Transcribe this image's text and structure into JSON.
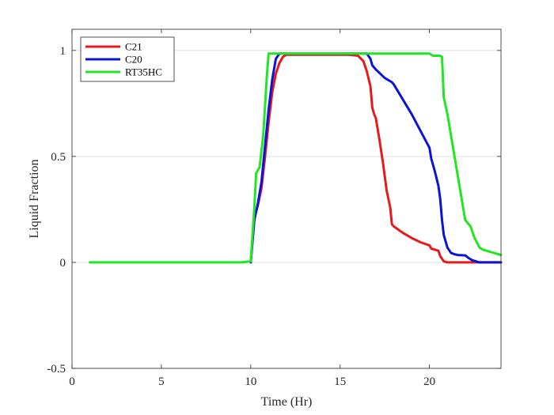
{
  "chart_data": {
    "type": "line",
    "title": "",
    "xlabel": "Time (Hr)",
    "ylabel": "Liquid Fraction",
    "xlim": [
      0,
      24
    ],
    "ylim": [
      -0.5,
      1.1
    ],
    "xticks": [
      0,
      5,
      10,
      15,
      20
    ],
    "yticks": [
      -0.5,
      0,
      0.5,
      1
    ],
    "ytick_labels": [
      "-0.5",
      "0",
      "0.5",
      "1"
    ],
    "grid": "horizontal",
    "legend_position": "top-left",
    "series": [
      {
        "name": "C21",
        "color": "#e41a1c",
        "x": [
          10.0,
          10.2,
          10.4,
          10.6,
          10.8,
          11.0,
          11.2,
          11.4,
          11.6,
          11.8,
          12.0,
          12.5,
          13.0,
          14.0,
          15.0,
          15.5,
          16.0,
          16.3,
          16.5,
          16.7,
          16.8,
          16.9,
          17.0,
          17.2,
          17.4,
          17.6,
          17.8,
          17.9,
          18.0,
          18.5,
          19.0,
          19.5,
          20.0,
          20.1,
          20.5,
          20.6,
          20.8,
          21.0,
          21.5,
          22.0,
          24.0
        ],
        "y": [
          0.0,
          0.21,
          0.27,
          0.35,
          0.5,
          0.66,
          0.8,
          0.89,
          0.94,
          0.97,
          0.98,
          0.98,
          0.98,
          0.98,
          0.98,
          0.98,
          0.975,
          0.95,
          0.9,
          0.83,
          0.73,
          0.7,
          0.68,
          0.58,
          0.47,
          0.34,
          0.26,
          0.18,
          0.17,
          0.14,
          0.115,
          0.095,
          0.08,
          0.065,
          0.055,
          0.03,
          0.005,
          0.0,
          0.0,
          0.0,
          0.0
        ]
      },
      {
        "name": "C20",
        "color": "#0a14d6",
        "x": [
          10.0,
          10.2,
          10.4,
          10.6,
          10.8,
          11.0,
          11.2,
          11.4,
          11.6,
          12.0,
          13.0,
          14.0,
          15.0,
          16.0,
          16.5,
          16.7,
          16.8,
          17.0,
          17.5,
          17.9,
          18.0,
          18.5,
          19.0,
          19.5,
          20.0,
          20.1,
          20.3,
          20.5,
          20.6,
          20.7,
          20.8,
          21.0,
          21.2,
          21.4,
          21.6,
          22.0,
          22.2,
          22.4,
          22.6,
          22.8,
          23.0,
          24.0
        ],
        "y": [
          0.0,
          0.2,
          0.28,
          0.38,
          0.55,
          0.72,
          0.86,
          0.96,
          0.985,
          0.985,
          0.985,
          0.985,
          0.985,
          0.985,
          0.985,
          0.96,
          0.93,
          0.91,
          0.87,
          0.85,
          0.84,
          0.77,
          0.7,
          0.62,
          0.54,
          0.49,
          0.43,
          0.36,
          0.3,
          0.2,
          0.13,
          0.07,
          0.045,
          0.038,
          0.035,
          0.033,
          0.02,
          0.01,
          0.005,
          0.0,
          0.0,
          0.0
        ]
      },
      {
        "name": "RT35HC",
        "color": "#22e622",
        "x": [
          1.0,
          5.0,
          9.0,
          9.5,
          10.0,
          10.2,
          10.3,
          10.5,
          10.7,
          10.9,
          11.0,
          11.5,
          12.0,
          13.0,
          14.0,
          15.0,
          16.0,
          16.5,
          17.0,
          18.0,
          19.0,
          20.0,
          20.2,
          20.6,
          20.7,
          20.8,
          21.0,
          21.2,
          21.4,
          21.6,
          21.8,
          22.0,
          22.3,
          22.5,
          22.8,
          23.0,
          24.0
        ],
        "y": [
          0.0,
          0.0,
          0.0,
          0.0,
          0.005,
          0.26,
          0.42,
          0.45,
          0.6,
          0.88,
          0.985,
          0.985,
          0.985,
          0.985,
          0.985,
          0.985,
          0.985,
          0.985,
          0.985,
          0.985,
          0.985,
          0.985,
          0.975,
          0.975,
          0.97,
          0.78,
          0.7,
          0.6,
          0.5,
          0.4,
          0.3,
          0.2,
          0.17,
          0.12,
          0.07,
          0.06,
          0.035
        ]
      }
    ]
  }
}
